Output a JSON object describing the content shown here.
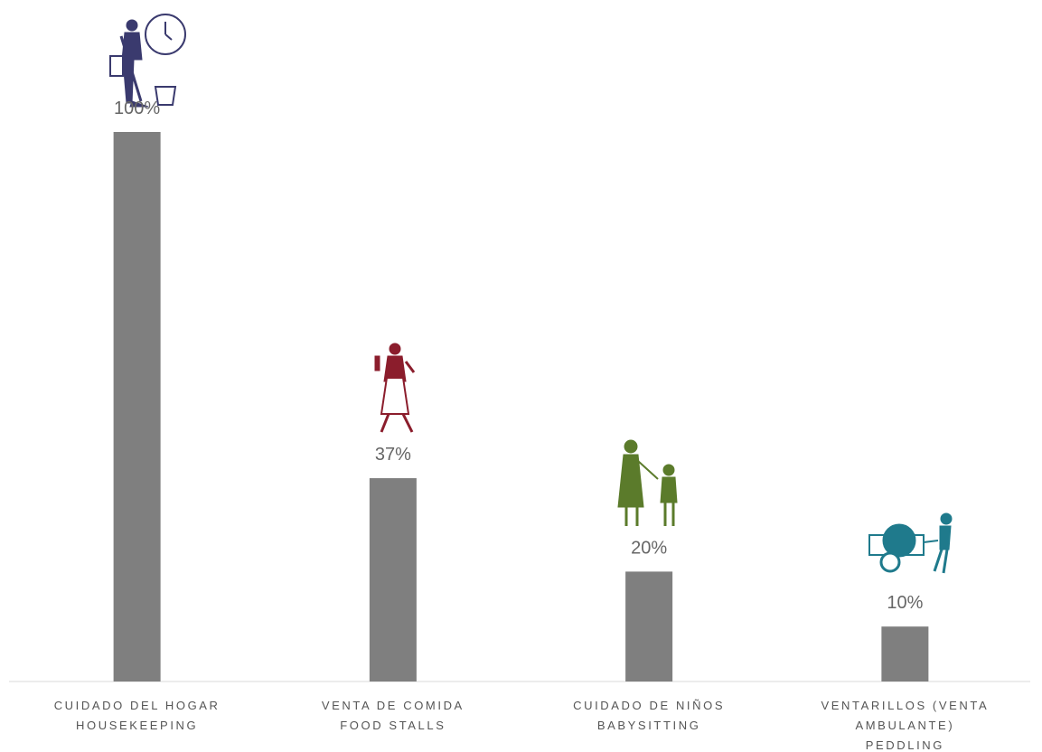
{
  "chart_data": {
    "type": "bar",
    "categories": [
      [
        "CUIDADO DEL HOGAR",
        "HOUSEKEEPING"
      ],
      [
        "VENTA DE COMIDA",
        "FOOD STALLS"
      ],
      [
        "CUIDADO DE NIÑOS",
        "BABYSITTING"
      ],
      [
        "VENTARILLOS (VENTA",
        "AMBULANTE)",
        "PEDDLING"
      ]
    ],
    "values": [
      100,
      37,
      20,
      10
    ],
    "value_labels": [
      "100%",
      "37%",
      "20%",
      "10%"
    ],
    "color": "#7f7f7f"
  }
}
